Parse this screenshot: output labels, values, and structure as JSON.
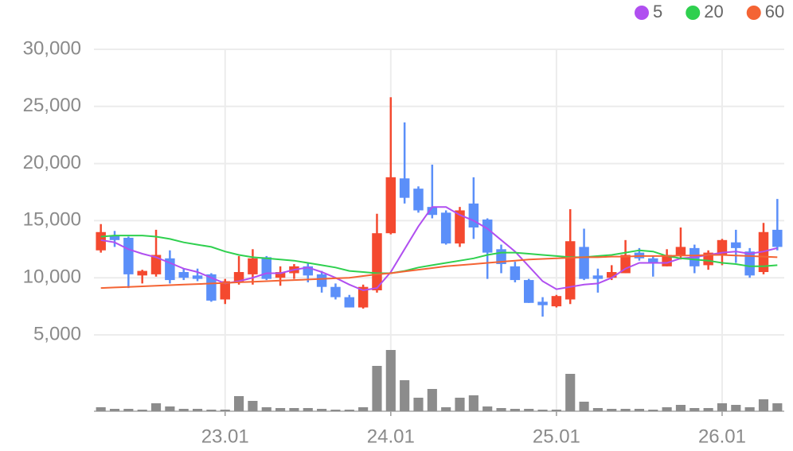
{
  "chart_data": {
    "type": "candlestick",
    "categories": [
      null,
      null,
      null,
      null,
      null,
      null,
      null,
      null,
      null,
      "23.01",
      null,
      null,
      null,
      null,
      null,
      null,
      null,
      null,
      null,
      null,
      null,
      "24.01",
      null,
      null,
      null,
      null,
      null,
      null,
      null,
      null,
      null,
      null,
      null,
      "25.01",
      null,
      null,
      null,
      null,
      null,
      null,
      null,
      null,
      null,
      null,
      null,
      "26.01",
      null,
      null,
      null,
      null
    ],
    "open": [
      12400,
      13700,
      13500,
      10200,
      10300,
      11700,
      10500,
      10200,
      10300,
      8100,
      9600,
      10300,
      11800,
      10000,
      10400,
      11000,
      10300,
      9200,
      8300,
      7400,
      8900,
      13900,
      18700,
      17800,
      16200,
      15700,
      13000,
      16500,
      15100,
      12500,
      11000,
      9800,
      7900,
      7500,
      8100,
      12700,
      10200,
      10000,
      10400,
      12200,
      11700,
      11000,
      12000,
      12600,
      11100,
      12000,
      13100,
      12300,
      10500,
      14200
    ],
    "high": [
      14700,
      14100,
      13600,
      10700,
      14200,
      12400,
      10800,
      10800,
      10400,
      9900,
      11900,
      12500,
      11900,
      11000,
      11200,
      11300,
      10600,
      9500,
      8500,
      9400,
      15600,
      25800,
      23600,
      18000,
      19900,
      15900,
      16200,
      18800,
      15200,
      12900,
      11400,
      9900,
      8300,
      8500,
      16000,
      14300,
      10800,
      11100,
      13300,
      12600,
      11900,
      12500,
      14400,
      12900,
      12400,
      13400,
      14200,
      12600,
      14800,
      16900
    ],
    "low": [
      12200,
      12700,
      9100,
      9500,
      10100,
      9500,
      9800,
      9700,
      7900,
      7700,
      9400,
      9400,
      9800,
      9300,
      9900,
      9600,
      8700,
      8100,
      7400,
      7300,
      8700,
      13800,
      16500,
      15700,
      15200,
      12900,
      12700,
      13400,
      9900,
      10400,
      9600,
      7800,
      6600,
      7400,
      7700,
      9800,
      8700,
      9800,
      10400,
      11500,
      10100,
      11000,
      11600,
      10400,
      10700,
      11100,
      11300,
      10000,
      10300,
      12400
    ],
    "close": [
      14000,
      13300,
      10300,
      10600,
      12000,
      9800,
      10000,
      9900,
      8000,
      9700,
      10500,
      11700,
      9900,
      10500,
      11000,
      10200,
      9200,
      8300,
      7400,
      9200,
      13900,
      18800,
      17000,
      15900,
      15500,
      13000,
      15900,
      14400,
      12200,
      11200,
      9800,
      7800,
      7600,
      8400,
      13200,
      9900,
      9900,
      10500,
      12000,
      11700,
      11300,
      12000,
      12700,
      11000,
      12200,
      13300,
      12600,
      10200,
      14000,
      12700
    ],
    "up_color": "#f4492f",
    "down_color": "#5b8ff9",
    "series": [
      {
        "name": "5",
        "color": "#b04ff0",
        "values": [
          13300,
          13100,
          12500,
          12100,
          11800,
          11300,
          10800,
          10500,
          10000,
          9500,
          9700,
          10000,
          10400,
          10400,
          10700,
          10900,
          10500,
          10000,
          9400,
          8900,
          9100,
          10500,
          12500,
          14500,
          16200,
          16200,
          15500,
          15000,
          14300,
          13300,
          12300,
          11000,
          9700,
          9000,
          9200,
          9400,
          9500,
          10000,
          10800,
          11300,
          11300,
          11300,
          11700,
          11800,
          12000,
          12200,
          12300,
          12100,
          12300,
          12600
        ]
      },
      {
        "name": "20",
        "color": "#2fd04f",
        "values": [
          13600,
          13700,
          13700,
          13700,
          13600,
          13400,
          13100,
          12900,
          12700,
          12300,
          12000,
          11800,
          11700,
          11600,
          11500,
          11300,
          11100,
          10900,
          10600,
          10500,
          10400,
          10400,
          10600,
          10900,
          11100,
          11300,
          11500,
          11700,
          12000,
          12200,
          12200,
          12100,
          12000,
          11900,
          11800,
          11800,
          11900,
          12000,
          12200,
          12400,
          12300,
          11900,
          11700,
          11600,
          11500,
          11300,
          11200,
          11000,
          11000,
          11100
        ]
      },
      {
        "name": "60",
        "color": "#f46434",
        "values": [
          9100,
          9150,
          9200,
          9250,
          9300,
          9350,
          9400,
          9450,
          9500,
          9550,
          9600,
          9650,
          9700,
          9750,
          9800,
          9850,
          9900,
          9950,
          10000,
          10150,
          10300,
          10400,
          10550,
          10700,
          10850,
          11000,
          11100,
          11200,
          11300,
          11400,
          11500,
          11600,
          11650,
          11700,
          11750,
          11800,
          11800,
          11850,
          11850,
          11900,
          11900,
          11900,
          11950,
          11950,
          12000,
          12000,
          11950,
          11900,
          11850,
          11800
        ]
      }
    ],
    "volume": [
      5,
      3,
      3,
      2,
      10,
      6,
      3,
      3,
      2,
      2,
      19,
      13,
      5,
      4,
      4,
      4,
      3,
      2,
      2,
      5,
      57,
      77,
      39,
      17,
      28,
      5,
      17,
      20,
      6,
      4,
      3,
      3,
      2,
      2,
      47,
      12,
      4,
      3,
      3,
      3,
      2,
      5,
      8,
      4,
      4,
      10,
      8,
      5,
      15,
      10
    ],
    "volume_color": "#8c8c8c",
    "volume_ylim": [
      0,
      100
    ],
    "ylim": [
      5000,
      30000
    ],
    "yticks": [
      {
        "value": 5000,
        "label": "5,000"
      },
      {
        "value": 10000,
        "label": "10,000"
      },
      {
        "value": 15000,
        "label": "15,000"
      },
      {
        "value": 20000,
        "label": "20,000"
      },
      {
        "value": 25000,
        "label": "25,000"
      },
      {
        "value": 30000,
        "label": "30,000"
      }
    ],
    "grid": true
  }
}
